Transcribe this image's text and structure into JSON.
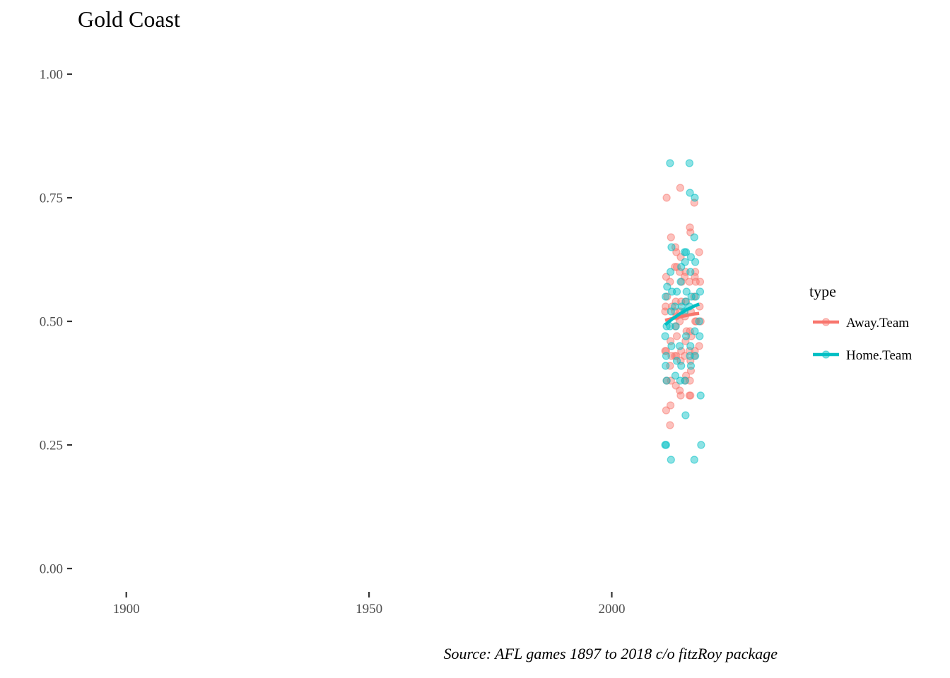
{
  "chart_data": {
    "type": "scatter",
    "title": "Gold Coast",
    "caption": "Source: AFL games 1897 to 2018 c/o fitzRoy package",
    "xlabel": "",
    "ylabel": "",
    "xlim": [
      1890,
      2035.6
    ],
    "ylim": [
      -0.05,
      1.05
    ],
    "x_ticks": [
      1900,
      1950,
      2000
    ],
    "x_tick_labels": [
      "1900",
      "1950",
      "2000"
    ],
    "y_ticks": [
      0,
      0.25,
      0.5,
      0.75,
      1
    ],
    "y_tick_labels": [
      "0.00",
      "0.25",
      "0.50",
      "0.75",
      "1.00"
    ],
    "grid": false,
    "legend": {
      "title": "type",
      "position": "right",
      "entries": [
        "Away.Team",
        "Home.Team"
      ]
    },
    "colors": {
      "Away.Team": "#F8766D",
      "Home.Team": "#00BFC4"
    },
    "series": [
      {
        "name": "Away.Team",
        "points": [
          [
            2011.3,
            0.75
          ],
          [
            2011.2,
            0.59
          ],
          [
            2011.4,
            0.55
          ],
          [
            2011.1,
            0.53
          ],
          [
            2011.0,
            0.52
          ],
          [
            2011.2,
            0.44
          ],
          [
            2011.0,
            0.44
          ],
          [
            2011.3,
            0.38
          ],
          [
            2011.2,
            0.32
          ],
          [
            2012.2,
            0.67
          ],
          [
            2012.0,
            0.58
          ],
          [
            2012.4,
            0.53
          ],
          [
            2012.1,
            0.46
          ],
          [
            2012.3,
            0.43
          ],
          [
            2012.0,
            0.41
          ],
          [
            2012.2,
            0.38
          ],
          [
            2012.1,
            0.33
          ],
          [
            2012.0,
            0.29
          ],
          [
            2013.1,
            0.65
          ],
          [
            2013.3,
            0.64
          ],
          [
            2013.0,
            0.61
          ],
          [
            2013.4,
            0.61
          ],
          [
            2013.2,
            0.54
          ],
          [
            2013.0,
            0.52
          ],
          [
            2013.3,
            0.51
          ],
          [
            2013.1,
            0.49
          ],
          [
            2013.4,
            0.47
          ],
          [
            2013.0,
            0.43
          ],
          [
            2013.3,
            0.43
          ],
          [
            2013.2,
            0.37
          ],
          [
            2014.1,
            0.77
          ],
          [
            2014.2,
            0.63
          ],
          [
            2014.0,
            0.6
          ],
          [
            2014.4,
            0.58
          ],
          [
            2014.3,
            0.54
          ],
          [
            2014.1,
            0.52
          ],
          [
            2014.0,
            0.5
          ],
          [
            2014.3,
            0.44
          ],
          [
            2014.2,
            0.42
          ],
          [
            2014.0,
            0.36
          ],
          [
            2014.2,
            0.35
          ],
          [
            2015.2,
            0.6
          ],
          [
            2015.0,
            0.59
          ],
          [
            2015.3,
            0.54
          ],
          [
            2015.1,
            0.51
          ],
          [
            2015.4,
            0.48
          ],
          [
            2015.2,
            0.46
          ],
          [
            2015.0,
            0.43
          ],
          [
            2015.3,
            0.39
          ],
          [
            2015.1,
            0.38
          ],
          [
            2016.1,
            0.69
          ],
          [
            2016.2,
            0.68
          ],
          [
            2016.0,
            0.58
          ],
          [
            2016.3,
            0.52
          ],
          [
            2016.1,
            0.48
          ],
          [
            2016.4,
            0.47
          ],
          [
            2016.0,
            0.44
          ],
          [
            2016.2,
            0.42
          ],
          [
            2016.3,
            0.4
          ],
          [
            2016.1,
            0.38
          ],
          [
            2016.0,
            0.35
          ],
          [
            2016.2,
            0.35
          ],
          [
            2017.0,
            0.74
          ],
          [
            2017.2,
            0.6
          ],
          [
            2017.1,
            0.59
          ],
          [
            2017.3,
            0.58
          ],
          [
            2017.0,
            0.55
          ],
          [
            2017.2,
            0.5
          ],
          [
            2017.4,
            0.5
          ],
          [
            2017.1,
            0.44
          ],
          [
            2017.0,
            0.43
          ],
          [
            2018.0,
            0.64
          ],
          [
            2018.2,
            0.58
          ],
          [
            2018.1,
            0.53
          ],
          [
            2018.3,
            0.5
          ],
          [
            2018.0,
            0.45
          ]
        ],
        "trend": [
          [
            2011.0,
            0.502
          ],
          [
            2012.5,
            0.506
          ],
          [
            2014.0,
            0.509
          ],
          [
            2015.5,
            0.512
          ],
          [
            2017.0,
            0.515
          ],
          [
            2018.0,
            0.516
          ]
        ]
      },
      {
        "name": "Home.Team",
        "points": [
          [
            2011.4,
            0.57
          ],
          [
            2011.1,
            0.55
          ],
          [
            2011.3,
            0.49
          ],
          [
            2011.0,
            0.47
          ],
          [
            2011.2,
            0.43
          ],
          [
            2011.1,
            0.41
          ],
          [
            2011.3,
            0.38
          ],
          [
            2011.0,
            0.25
          ],
          [
            2011.2,
            0.25
          ],
          [
            2012.0,
            0.82
          ],
          [
            2012.3,
            0.65
          ],
          [
            2012.1,
            0.6
          ],
          [
            2012.4,
            0.56
          ],
          [
            2012.2,
            0.52
          ],
          [
            2012.0,
            0.49
          ],
          [
            2012.3,
            0.45
          ],
          [
            2012.2,
            0.22
          ],
          [
            2013.4,
            0.56
          ],
          [
            2013.0,
            0.53
          ],
          [
            2013.2,
            0.49
          ],
          [
            2013.4,
            0.42
          ],
          [
            2013.1,
            0.39
          ],
          [
            2014.3,
            0.61
          ],
          [
            2014.2,
            0.58
          ],
          [
            2014.4,
            0.53
          ],
          [
            2014.0,
            0.45
          ],
          [
            2014.3,
            0.41
          ],
          [
            2014.1,
            0.38
          ],
          [
            2015.0,
            0.64
          ],
          [
            2015.3,
            0.64
          ],
          [
            2015.1,
            0.62
          ],
          [
            2015.4,
            0.56
          ],
          [
            2015.2,
            0.54
          ],
          [
            2015.0,
            0.52
          ],
          [
            2015.3,
            0.47
          ],
          [
            2015.1,
            0.38
          ],
          [
            2015.2,
            0.31
          ],
          [
            2016.0,
            0.82
          ],
          [
            2016.1,
            0.76
          ],
          [
            2016.3,
            0.63
          ],
          [
            2016.2,
            0.6
          ],
          [
            2016.4,
            0.55
          ],
          [
            2016.0,
            0.53
          ],
          [
            2016.2,
            0.45
          ],
          [
            2016.1,
            0.43
          ],
          [
            2016.3,
            0.41
          ],
          [
            2017.1,
            0.75
          ],
          [
            2017.0,
            0.67
          ],
          [
            2017.2,
            0.62
          ],
          [
            2017.3,
            0.55
          ],
          [
            2017.1,
            0.48
          ],
          [
            2017.2,
            0.43
          ],
          [
            2017.0,
            0.22
          ],
          [
            2018.2,
            0.56
          ],
          [
            2018.0,
            0.5
          ],
          [
            2018.1,
            0.47
          ],
          [
            2018.3,
            0.35
          ],
          [
            2018.4,
            0.25
          ]
        ],
        "trend": [
          [
            2011.0,
            0.493
          ],
          [
            2012.5,
            0.505
          ],
          [
            2014.0,
            0.515
          ],
          [
            2015.5,
            0.524
          ],
          [
            2017.0,
            0.531
          ],
          [
            2018.0,
            0.535
          ]
        ]
      }
    ]
  }
}
